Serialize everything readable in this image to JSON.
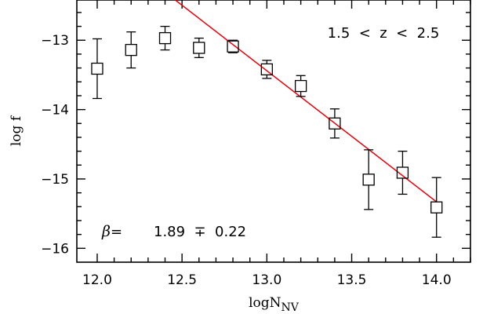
{
  "chart_data": {
    "type": "scatter",
    "title": "",
    "xlabel": "logN",
    "xlabel_sub": "NV",
    "ylabel": "log f",
    "xlim": [
      11.88,
      14.2
    ],
    "ylim": [
      -16.2,
      -12.42
    ],
    "x_ticks": [
      "12.0",
      "12.5",
      "13.0",
      "13.5",
      "14.0"
    ],
    "y_ticks": [
      "−13",
      "−14",
      "−15",
      "−16"
    ],
    "grid": false,
    "series": [
      {
        "marker": "open-square",
        "color": "#000000",
        "points": [
          {
            "x": 12.0,
            "y": -13.41,
            "yerr_up": 0.43,
            "yerr_down": 0.43
          },
          {
            "x": 12.2,
            "y": -13.14,
            "yerr_up": 0.26,
            "yerr_down": 0.26
          },
          {
            "x": 12.4,
            "y": -12.97,
            "yerr_up": 0.17,
            "yerr_down": 0.17
          },
          {
            "x": 12.6,
            "y": -13.11,
            "yerr_up": 0.14,
            "yerr_down": 0.14
          },
          {
            "x": 12.8,
            "y": -13.09,
            "yerr_up": 0.09,
            "yerr_down": 0.09
          },
          {
            "x": 13.0,
            "y": -13.42,
            "yerr_up": 0.13,
            "yerr_down": 0.13
          },
          {
            "x": 13.2,
            "y": -13.66,
            "yerr_up": 0.15,
            "yerr_down": 0.15
          },
          {
            "x": 13.4,
            "y": -14.2,
            "yerr_up": 0.21,
            "yerr_down": 0.21
          },
          {
            "x": 13.6,
            "y": -15.01,
            "yerr_up": 0.43,
            "yerr_down": 0.43
          },
          {
            "x": 13.8,
            "y": -14.91,
            "yerr_up": 0.31,
            "yerr_down": 0.31
          },
          {
            "x": 14.0,
            "y": -15.41,
            "yerr_up": 0.43,
            "yerr_down": 0.43
          }
        ]
      },
      {
        "type": "line",
        "color": "#e8000b",
        "points": [
          {
            "x": 12.46,
            "y": -12.42
          },
          {
            "x": 14.0,
            "y": -15.33
          }
        ]
      }
    ],
    "annotations": {
      "z_range": "1.5  <  z  <  2.5",
      "beta_symbol": "β",
      "beta_equals": "=",
      "beta_value": "1.89  ∓  0.22"
    }
  }
}
